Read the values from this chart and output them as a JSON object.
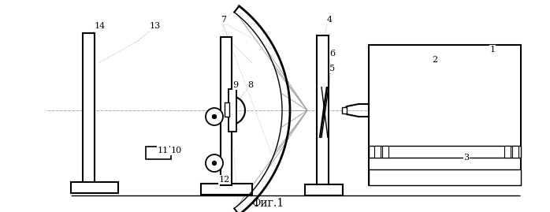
{
  "title": "Фиг.1",
  "background_color": "#ffffff",
  "line_color": "#000000",
  "dashed_color": "#aaaaaa",
  "lw_main": 1.5,
  "lw_thin": 0.8
}
